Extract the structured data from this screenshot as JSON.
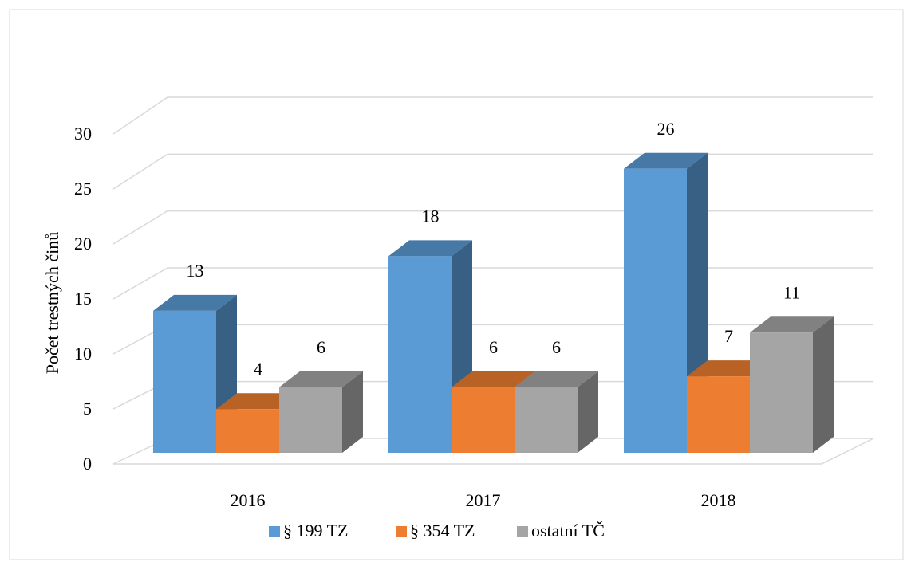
{
  "chart_data": {
    "type": "bar3d",
    "y_label": "Počet trestných činů",
    "categories": [
      "2016",
      "2017",
      "2018"
    ],
    "series": [
      {
        "name": "§ 199 TZ",
        "color": "#5b9bd5",
        "values": [
          13,
          18,
          26
        ]
      },
      {
        "name": "§ 354 TZ",
        "color": "#ed7d31",
        "values": [
          4,
          6,
          7
        ]
      },
      {
        "name": "ostatní TČ",
        "color": "#a5a5a5",
        "values": [
          6,
          6,
          11
        ]
      }
    ],
    "ylim": [
      0,
      30
    ],
    "yticks": [
      0,
      5,
      10,
      15,
      20,
      25,
      30
    ],
    "grid": true,
    "legend": "bottom"
  }
}
